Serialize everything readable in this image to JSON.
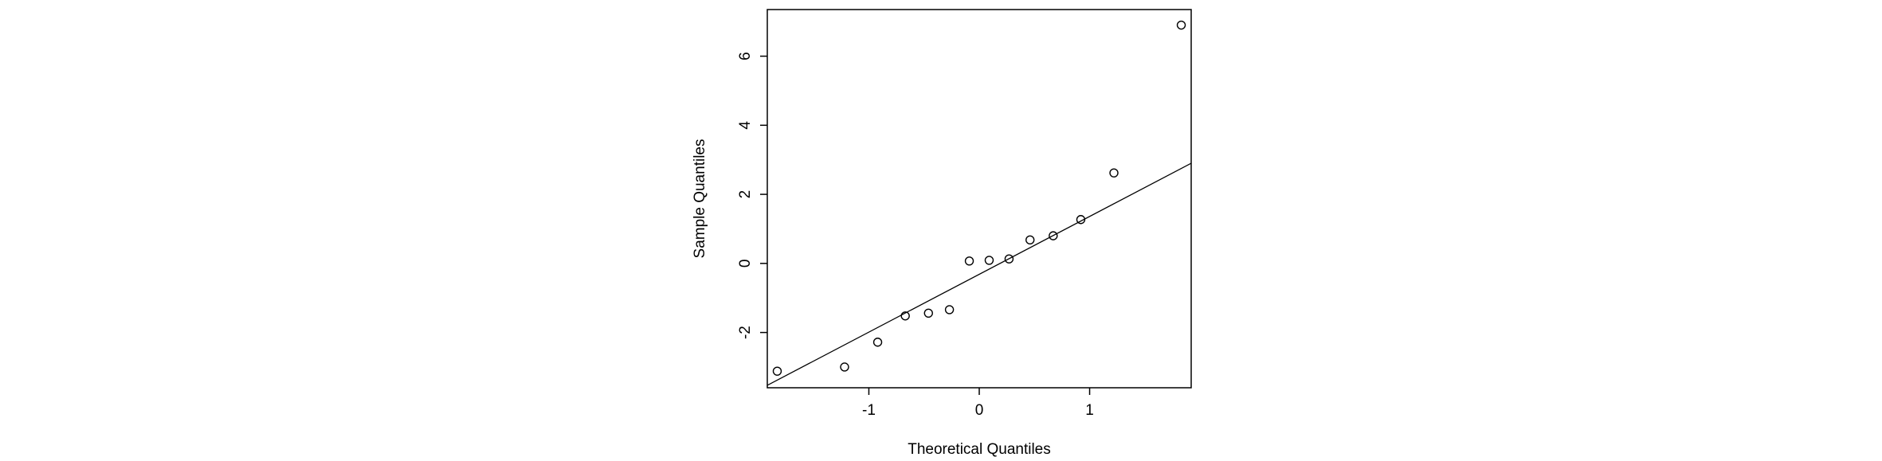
{
  "chart_data": {
    "type": "scatter",
    "title": "",
    "xlabel": "Theoretical Quantiles",
    "ylabel": "Sample Quantiles",
    "xlim": [
      -1.92,
      1.92
    ],
    "ylim": [
      -3.6,
      7.35
    ],
    "x_ticks": [
      {
        "value": -1,
        "label": "-1"
      },
      {
        "value": 0,
        "label": "0"
      },
      {
        "value": 1,
        "label": "1"
      }
    ],
    "y_ticks": [
      {
        "value": -2,
        "label": "-2"
      },
      {
        "value": 0,
        "label": "0"
      },
      {
        "value": 2,
        "label": "2"
      },
      {
        "value": 4,
        "label": "4"
      },
      {
        "value": 6,
        "label": "6"
      }
    ],
    "grid": false,
    "legend": "none",
    "series": [
      {
        "points": [
          {
            "x": -1.83,
            "y": -3.12
          },
          {
            "x": -1.22,
            "y": -3.0
          },
          {
            "x": -0.92,
            "y": -2.28
          },
          {
            "x": -0.67,
            "y": -1.52
          },
          {
            "x": -0.46,
            "y": -1.44
          },
          {
            "x": -0.27,
            "y": -1.34
          },
          {
            "x": -0.09,
            "y": 0.07
          },
          {
            "x": 0.09,
            "y": 0.09
          },
          {
            "x": 0.27,
            "y": 0.13
          },
          {
            "x": 0.46,
            "y": 0.68
          },
          {
            "x": 0.67,
            "y": 0.8
          },
          {
            "x": 0.92,
            "y": 1.27
          },
          {
            "x": 1.22,
            "y": 2.62
          },
          {
            "x": 1.83,
            "y": 6.9
          }
        ]
      }
    ],
    "reference_line": {
      "x": [
        -1.92,
        1.92
      ],
      "y": [
        -3.53,
        2.9
      ]
    },
    "marker_color": "#000000",
    "line_color": "#000000"
  }
}
